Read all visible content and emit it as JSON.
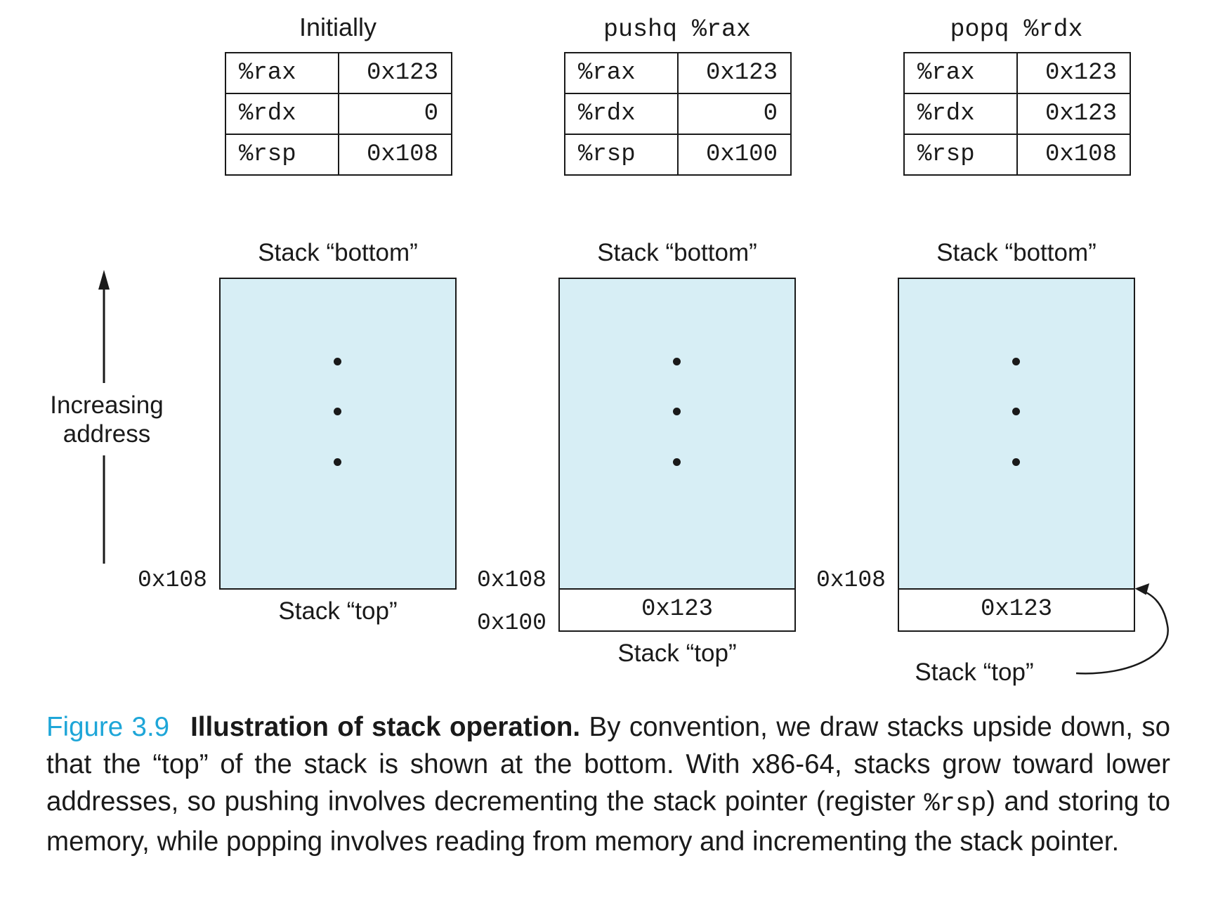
{
  "panels": [
    {
      "title": "Initially",
      "registers": [
        {
          "name": "%rax",
          "value": "0x123"
        },
        {
          "name": "%rdx",
          "value": "0"
        },
        {
          "name": "%rsp",
          "value": "0x108"
        }
      ],
      "stack_bottom_label": "Stack “bottom”",
      "stack_top_label": "Stack “top”",
      "addr_upper": "0x108"
    },
    {
      "title": "pushq %rax",
      "registers": [
        {
          "name": "%rax",
          "value": "0x123"
        },
        {
          "name": "%rdx",
          "value": "0"
        },
        {
          "name": "%rsp",
          "value": "0x100"
        }
      ],
      "stack_bottom_label": "Stack “bottom”",
      "stack_top_label": "Stack “top”",
      "addr_upper": "0x108",
      "addr_lower": "0x100",
      "slot_value": "0x123"
    },
    {
      "title": "popq %rdx",
      "registers": [
        {
          "name": "%rax",
          "value": "0x123"
        },
        {
          "name": "%rdx",
          "value": "0x123"
        },
        {
          "name": "%rsp",
          "value": "0x108"
        }
      ],
      "stack_bottom_label": "Stack “bottom”",
      "stack_top_label": "Stack “top”",
      "addr_upper": "0x108",
      "slot_value": "0x123"
    }
  ],
  "axis": {
    "label_line1": "Increasing",
    "label_line2": "address"
  },
  "caption": {
    "figure_number": "Figure 3.9",
    "lead": "Illustration of stack operation.",
    "text_part1": " By convention, we draw stacks upside down, so that the “top” of the stack is shown at the bottom. With x86-64, stacks grow toward lower addresses, so pushing involves decrementing the stack pointer (register ",
    "code": "%rsp",
    "text_part2": ") and storing to memory, while popping involves reading from memory and incrementing the stack pointer."
  },
  "colors": {
    "stack_fill": "#d7eef5",
    "figure_label": "#1ea6d8"
  }
}
